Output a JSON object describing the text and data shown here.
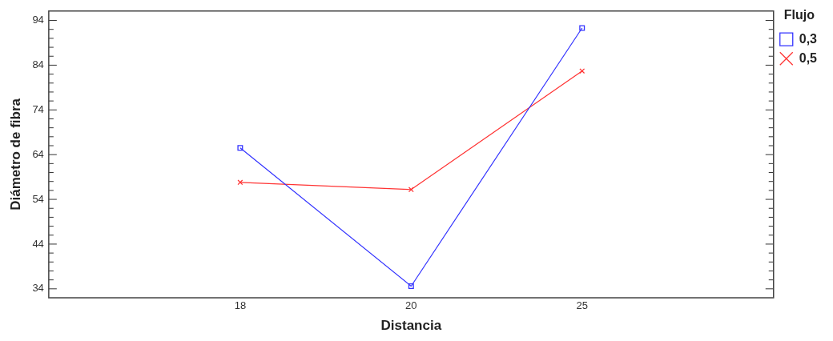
{
  "chart_data": {
    "type": "line",
    "xlabel": "Distancia",
    "ylabel": "Diámetro de fibra",
    "legend_title": "Flujo",
    "legend": "top right",
    "grid": false,
    "categories": [
      "18",
      "20",
      "25"
    ],
    "ylim": [
      32.0,
      96.1
    ],
    "yticks": [
      34,
      44,
      54,
      64,
      74,
      84,
      94
    ],
    "series": [
      {
        "name": "0,3",
        "color": "#3333ff",
        "marker": "square",
        "values": [
          65.5,
          34.6,
          92.3
        ]
      },
      {
        "name": "0,5",
        "color": "#ff3333",
        "marker": "cross",
        "values": [
          57.8,
          56.2,
          82.7
        ]
      }
    ]
  }
}
